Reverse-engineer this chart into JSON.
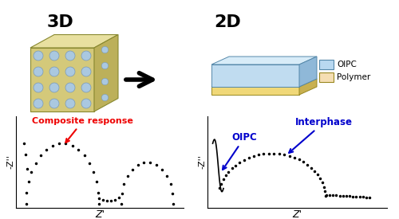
{
  "title_3d": "3D",
  "title_2d": "2D",
  "title_fontsize": 16,
  "bg_color": "#ffffff",
  "legend_oipc_color": "#b8d8f0",
  "legend_polymer_color": "#f5deb3",
  "left_annotation": "Composite response",
  "left_annotation_color": "#ee0000",
  "right_annotation_top": "Interphase",
  "right_annotation_bottom": "OIPC",
  "right_annotation_color": "#0000cc",
  "xlabel": "Z'",
  "ylabel": "-Z''",
  "dot_color": "#000000",
  "dot_size": 3.0,
  "cube_front_color": "#d4c97a",
  "cube_top_color": "#e8e0a0",
  "cube_right_color": "#bcb05a",
  "cube_dot_color": "#aac8e0",
  "layer_oipc_color": "#c0dcf0",
  "layer_oipc_right_color": "#8fb8d8",
  "layer_oipc_top_color": "#d8ecf8",
  "layer_poly_color": "#f0d878",
  "layer_poly_right_color": "#c8b050"
}
